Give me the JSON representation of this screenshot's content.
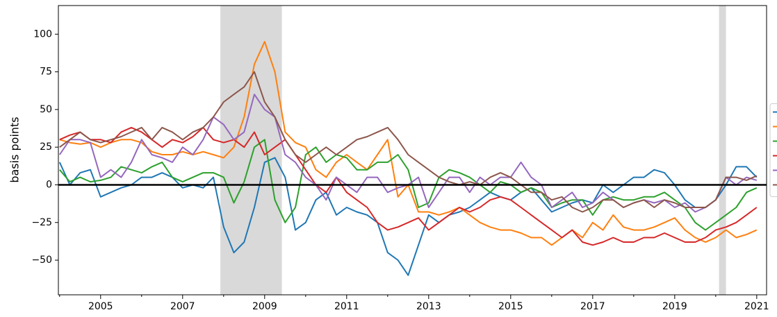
{
  "chart_data": {
    "type": "line",
    "y_label": "basis points",
    "x": [
      2004,
      2004.25,
      2004.5,
      2004.75,
      2005,
      2005.25,
      2005.5,
      2005.75,
      2006,
      2006.25,
      2006.5,
      2006.75,
      2007,
      2007.25,
      2007.5,
      2007.75,
      2008,
      2008.25,
      2008.5,
      2008.75,
      2009,
      2009.25,
      2009.5,
      2009.75,
      2010,
      2010.25,
      2010.5,
      2010.75,
      2011,
      2011.25,
      2011.5,
      2011.75,
      2012,
      2012.25,
      2012.5,
      2012.75,
      2013,
      2013.25,
      2013.5,
      2013.75,
      2014,
      2014.25,
      2014.5,
      2014.75,
      2015,
      2015.25,
      2015.5,
      2015.75,
      2016,
      2016.25,
      2016.5,
      2016.75,
      2017,
      2017.25,
      2017.5,
      2017.75,
      2018,
      2018.25,
      2018.5,
      2018.75,
      2019,
      2019.25,
      2019.5,
      2019.75,
      2020,
      2020.25,
      2020.5,
      2020.75,
      2021
    ],
    "series": [
      {
        "color": "#1f77b4",
        "values": [
          15,
          0,
          8,
          10,
          -8,
          -5,
          -2,
          0,
          5,
          5,
          8,
          5,
          -2,
          0,
          -2,
          5,
          -28,
          -45,
          -38,
          -15,
          15,
          18,
          5,
          -30,
          -25,
          -10,
          -5,
          -20,
          -15,
          -18,
          -20,
          -25,
          -45,
          -50,
          -60,
          -40,
          -20,
          -25,
          -20,
          -18,
          -15,
          -10,
          -5,
          -8,
          -10,
          -5,
          -2,
          -10,
          -18,
          -15,
          -12,
          -10,
          -12,
          0,
          -5,
          0,
          5,
          5,
          10,
          8,
          0,
          -10,
          -15,
          -15,
          -10,
          0,
          12,
          12,
          5
        ]
      },
      {
        "color": "#ff7f0e",
        "values": [
          30,
          28,
          27,
          28,
          25,
          28,
          30,
          30,
          28,
          22,
          20,
          20,
          22,
          20,
          22,
          20,
          18,
          25,
          45,
          80,
          95,
          75,
          35,
          28,
          25,
          10,
          5,
          15,
          20,
          15,
          10,
          20,
          30,
          -8,
          0,
          -18,
          -18,
          -20,
          -18,
          -15,
          -20,
          -25,
          -28,
          -30,
          -30,
          -32,
          -35,
          -35,
          -40,
          -35,
          -30,
          -35,
          -25,
          -30,
          -20,
          -28,
          -30,
          -30,
          -28,
          -25,
          -22,
          -30,
          -35,
          -38,
          -35,
          -30,
          -35,
          -33,
          -30
        ]
      },
      {
        "color": "#2ca02c",
        "values": [
          10,
          2,
          5,
          2,
          3,
          5,
          12,
          10,
          8,
          12,
          15,
          5,
          2,
          5,
          8,
          8,
          5,
          -12,
          2,
          25,
          30,
          -10,
          -25,
          -15,
          20,
          25,
          15,
          20,
          18,
          10,
          10,
          15,
          15,
          20,
          10,
          -15,
          -12,
          5,
          10,
          8,
          5,
          0,
          -5,
          2,
          0,
          -5,
          -2,
          -5,
          -15,
          -12,
          -10,
          -10,
          -20,
          -10,
          -8,
          -10,
          -10,
          -8,
          -8,
          -5,
          -10,
          -15,
          -25,
          -30,
          -25,
          -20,
          -15,
          -5,
          -2
        ]
      },
      {
        "color": "#d62728",
        "values": [
          30,
          33,
          35,
          30,
          30,
          28,
          35,
          38,
          35,
          30,
          25,
          30,
          28,
          32,
          38,
          30,
          28,
          30,
          25,
          35,
          20,
          25,
          30,
          20,
          10,
          0,
          -5,
          5,
          -5,
          -10,
          -15,
          -25,
          -30,
          -28,
          -25,
          -22,
          -30,
          -25,
          -20,
          -15,
          -18,
          -15,
          -10,
          -8,
          -10,
          -15,
          -20,
          -25,
          -30,
          -35,
          -30,
          -38,
          -40,
          -38,
          -35,
          -38,
          -38,
          -35,
          -35,
          -32,
          -35,
          -38,
          -38,
          -35,
          -30,
          -28,
          -25,
          -20,
          -15
        ]
      },
      {
        "color": "#9467bd",
        "values": [
          20,
          30,
          30,
          28,
          5,
          10,
          5,
          15,
          30,
          20,
          18,
          15,
          25,
          20,
          30,
          45,
          40,
          30,
          35,
          60,
          50,
          45,
          20,
          15,
          5,
          0,
          -10,
          5,
          0,
          -5,
          5,
          5,
          -5,
          -2,
          0,
          5,
          -15,
          -5,
          5,
          5,
          -5,
          5,
          0,
          5,
          5,
          15,
          5,
          0,
          -15,
          -10,
          -5,
          -15,
          -12,
          -5,
          -10,
          -15,
          -12,
          -10,
          -12,
          -10,
          -15,
          -12,
          -18,
          -15,
          -10,
          5,
          0,
          5,
          3
        ]
      },
      {
        "color": "#8c564b",
        "values": [
          25,
          30,
          35,
          30,
          28,
          30,
          32,
          35,
          38,
          30,
          38,
          35,
          30,
          35,
          38,
          45,
          55,
          60,
          65,
          75,
          55,
          45,
          30,
          20,
          15,
          20,
          25,
          20,
          25,
          30,
          32,
          35,
          38,
          30,
          20,
          15,
          10,
          5,
          2,
          0,
          2,
          0,
          5,
          8,
          5,
          0,
          -5,
          -5,
          -10,
          -8,
          -15,
          -18,
          -15,
          -10,
          -10,
          -15,
          -12,
          -10,
          -15,
          -10,
          -12,
          -15,
          -15,
          -15,
          -10,
          5,
          5,
          3,
          6
        ]
      }
    ],
    "xlim": [
      2003.97,
      2021.24
    ],
    "xticks": [
      2005,
      2007,
      2009,
      2011,
      2013,
      2015,
      2017,
      2019,
      2021
    ],
    "xminorticks": [
      2004,
      2006,
      2008,
      2010,
      2012,
      2014,
      2016,
      2018,
      2020
    ],
    "ylim": [
      -73,
      119
    ],
    "yticks": [
      {
        "value": -50,
        "label": "−50"
      },
      {
        "value": -25,
        "label": "−25"
      },
      0,
      25,
      50,
      75,
      100
    ],
    "hline": 0,
    "shaded_regions": [
      [
        2007.92,
        2009.42
      ],
      [
        2020.08,
        2020.25
      ]
    ],
    "shade_color": "#d9d9d9",
    "legend": "center right",
    "grid": false
  }
}
